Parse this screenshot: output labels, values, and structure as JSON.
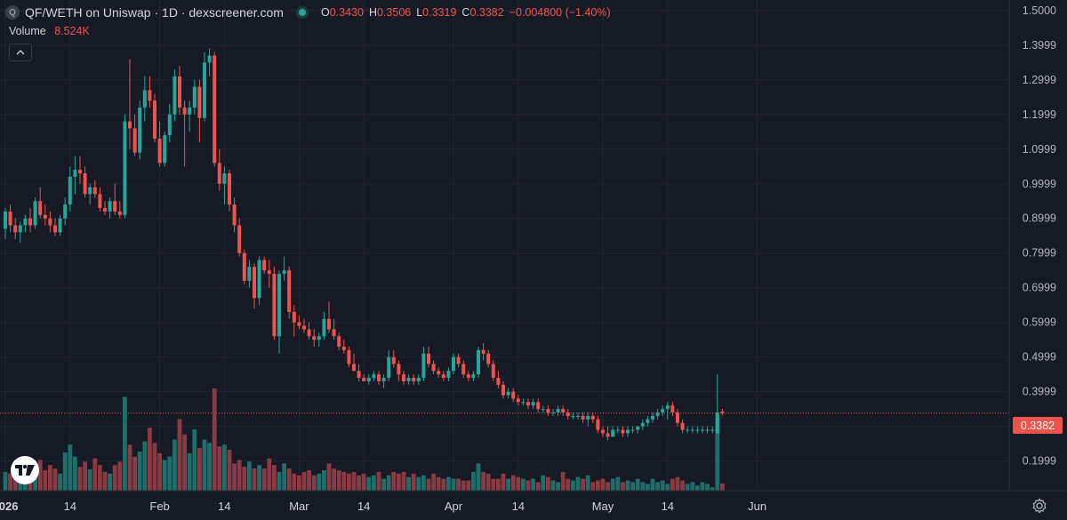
{
  "header": {
    "symbol_icon": "Q",
    "title": "QF/WETH on Uniswap · 1D · dexscreener.com",
    "status_icon": "market-status-dot-icon",
    "ohlc": {
      "open_label": "O",
      "open": "0.3430",
      "high_label": "H",
      "high": "0.3506",
      "low_label": "L",
      "low": "0.3319",
      "close_label": "C",
      "close": "0.3382",
      "change": "−0.004800 (−1.40%)"
    },
    "volume_label": "Volume",
    "volume_value": "8.524K",
    "collapse_icon": "chevron-up-icon"
  },
  "price_badge": "0.3382",
  "logo_icon": "tradingview-logo-icon",
  "settings_icon": "gear-icon",
  "colors": {
    "background": "#161a25",
    "up": "#26a69a",
    "down": "#ef5350",
    "volume_up": "#1f6e69",
    "volume_down": "#8a3a42",
    "grid": "#232632",
    "text": "#d1d4dc"
  },
  "chart_data": {
    "type": "candlestick",
    "interval": "1D",
    "y_axis": {
      "min": 0.14,
      "max": 1.52,
      "ticks": [
        "1.5000",
        "1.3999",
        "1.2999",
        "1.1999",
        "1.0999",
        "0.9999",
        "0.8999",
        "0.7999",
        "0.6999",
        "0.5999",
        "0.4999",
        "0.3999",
        "0.2999",
        "0.1999"
      ],
      "tick_values": [
        1.5,
        1.3999,
        1.2999,
        1.1999,
        1.0999,
        0.9999,
        0.8999,
        0.7999,
        0.6999,
        0.5999,
        0.4999,
        0.3999,
        0.2999,
        0.1999
      ],
      "position": "right"
    },
    "x_axis": {
      "labels": [
        {
          "text": "2026",
          "day": 14,
          "bold": true
        },
        {
          "text": "14",
          "day": 27,
          "bold": false
        },
        {
          "text": "Feb",
          "day": 45,
          "bold": false
        },
        {
          "text": "14",
          "day": 58,
          "bold": false
        },
        {
          "text": "Mar",
          "day": 73,
          "bold": false
        },
        {
          "text": "14",
          "day": 86,
          "bold": false
        },
        {
          "text": "Apr",
          "day": 104,
          "bold": false
        },
        {
          "text": "14",
          "day": 117,
          "bold": false
        },
        {
          "text": "May",
          "day": 134,
          "bold": false
        },
        {
          "text": "14",
          "day": 147,
          "bold": false
        },
        {
          "text": "Jun",
          "day": 165,
          "bold": false
        }
      ],
      "day_offset": 14
    },
    "last_price": 0.3382,
    "grid": true,
    "volume_pane": "overlay-bottom",
    "candles": [
      [
        0.87,
        0.93,
        0.84,
        0.92,
        22
      ],
      [
        0.92,
        0.94,
        0.86,
        0.88,
        20
      ],
      [
        0.88,
        0.9,
        0.84,
        0.86,
        25
      ],
      [
        0.86,
        0.89,
        0.83,
        0.88,
        18
      ],
      [
        0.88,
        0.91,
        0.86,
        0.9,
        20
      ],
      [
        0.9,
        0.93,
        0.86,
        0.88,
        28
      ],
      [
        0.88,
        0.96,
        0.87,
        0.95,
        32
      ],
      [
        0.95,
        0.99,
        0.9,
        0.91,
        36
      ],
      [
        0.91,
        0.94,
        0.88,
        0.9,
        24
      ],
      [
        0.9,
        0.92,
        0.86,
        0.88,
        30
      ],
      [
        0.88,
        0.9,
        0.85,
        0.86,
        26
      ],
      [
        0.86,
        0.91,
        0.85,
        0.9,
        20
      ],
      [
        0.9,
        0.96,
        0.88,
        0.94,
        45
      ],
      [
        0.94,
        1.05,
        0.92,
        1.02,
        54
      ],
      [
        1.02,
        1.08,
        0.97,
        1.04,
        40
      ],
      [
        1.04,
        1.08,
        1.0,
        1.03,
        28
      ],
      [
        1.03,
        1.05,
        0.96,
        0.97,
        34
      ],
      [
        0.97,
        1.0,
        0.94,
        0.99,
        25
      ],
      [
        0.99,
        1.01,
        0.96,
        0.97,
        38
      ],
      [
        0.97,
        0.99,
        0.92,
        0.93,
        30
      ],
      [
        0.93,
        0.95,
        0.91,
        0.92,
        22
      ],
      [
        0.92,
        0.96,
        0.9,
        0.95,
        20
      ],
      [
        0.95,
        1.0,
        0.91,
        0.92,
        30
      ],
      [
        0.92,
        0.95,
        0.9,
        0.91,
        34
      ],
      [
        0.91,
        1.2,
        0.9,
        1.18,
        110
      ],
      [
        1.18,
        1.36,
        1.1,
        1.16,
        54
      ],
      [
        1.16,
        1.2,
        1.08,
        1.09,
        40
      ],
      [
        1.09,
        1.24,
        1.07,
        1.22,
        46
      ],
      [
        1.22,
        1.31,
        1.18,
        1.27,
        58
      ],
      [
        1.27,
        1.31,
        1.22,
        1.24,
        74
      ],
      [
        1.24,
        1.26,
        1.12,
        1.13,
        56
      ],
      [
        1.13,
        1.18,
        1.05,
        1.06,
        44
      ],
      [
        1.06,
        1.15,
        1.05,
        1.14,
        36
      ],
      [
        1.14,
        1.23,
        1.12,
        1.2,
        40
      ],
      [
        1.2,
        1.33,
        1.18,
        1.31,
        60
      ],
      [
        1.31,
        1.34,
        1.2,
        1.22,
        84
      ],
      [
        1.22,
        1.24,
        1.05,
        1.2,
        66
      ],
      [
        1.2,
        1.24,
        1.15,
        1.22,
        44
      ],
      [
        1.22,
        1.3,
        1.2,
        1.28,
        72
      ],
      [
        1.28,
        1.3,
        1.12,
        1.19,
        50
      ],
      [
        1.19,
        1.38,
        1.18,
        1.35,
        60
      ],
      [
        1.35,
        1.39,
        1.31,
        1.37,
        56
      ],
      [
        1.37,
        1.38,
        1.05,
        1.06,
        120
      ],
      [
        1.06,
        1.1,
        0.98,
        1.0,
        52
      ],
      [
        1.0,
        1.05,
        0.94,
        1.03,
        54
      ],
      [
        1.03,
        1.04,
        0.92,
        0.94,
        48
      ],
      [
        0.94,
        0.96,
        0.86,
        0.88,
        32
      ],
      [
        0.88,
        0.9,
        0.79,
        0.8,
        36
      ],
      [
        0.8,
        0.81,
        0.71,
        0.72,
        28
      ],
      [
        0.72,
        0.78,
        0.7,
        0.76,
        34
      ],
      [
        0.76,
        0.77,
        0.64,
        0.67,
        26
      ],
      [
        0.67,
        0.79,
        0.65,
        0.78,
        30
      ],
      [
        0.78,
        0.79,
        0.74,
        0.75,
        26
      ],
      [
        0.75,
        0.78,
        0.7,
        0.74,
        38
      ],
      [
        0.74,
        0.76,
        0.55,
        0.56,
        30
      ],
      [
        0.56,
        0.75,
        0.51,
        0.74,
        22
      ],
      [
        0.74,
        0.79,
        0.72,
        0.75,
        32
      ],
      [
        0.75,
        0.76,
        0.61,
        0.63,
        26
      ],
      [
        0.63,
        0.65,
        0.56,
        0.6,
        20
      ],
      [
        0.6,
        0.62,
        0.58,
        0.59,
        18
      ],
      [
        0.59,
        0.61,
        0.57,
        0.58,
        22
      ],
      [
        0.58,
        0.6,
        0.55,
        0.56,
        24
      ],
      [
        0.56,
        0.58,
        0.53,
        0.55,
        18
      ],
      [
        0.55,
        0.57,
        0.53,
        0.56,
        20
      ],
      [
        0.56,
        0.63,
        0.55,
        0.61,
        24
      ],
      [
        0.61,
        0.66,
        0.57,
        0.58,
        32
      ],
      [
        0.58,
        0.61,
        0.55,
        0.56,
        26
      ],
      [
        0.56,
        0.57,
        0.52,
        0.53,
        24
      ],
      [
        0.53,
        0.55,
        0.51,
        0.52,
        22
      ],
      [
        0.52,
        0.53,
        0.47,
        0.48,
        20
      ],
      [
        0.48,
        0.51,
        0.46,
        0.46,
        22
      ],
      [
        0.46,
        0.48,
        0.43,
        0.44,
        18
      ],
      [
        0.44,
        0.45,
        0.43,
        0.43,
        20
      ],
      [
        0.43,
        0.45,
        0.42,
        0.44,
        16
      ],
      [
        0.44,
        0.46,
        0.43,
        0.45,
        18
      ],
      [
        0.45,
        0.46,
        0.42,
        0.43,
        22
      ],
      [
        0.43,
        0.45,
        0.41,
        0.44,
        14
      ],
      [
        0.44,
        0.52,
        0.43,
        0.5,
        18
      ],
      [
        0.5,
        0.52,
        0.47,
        0.48,
        22
      ],
      [
        0.48,
        0.49,
        0.43,
        0.45,
        20
      ],
      [
        0.45,
        0.46,
        0.42,
        0.43,
        22
      ],
      [
        0.43,
        0.45,
        0.42,
        0.44,
        16
      ],
      [
        0.44,
        0.45,
        0.42,
        0.43,
        20
      ],
      [
        0.43,
        0.45,
        0.42,
        0.44,
        16
      ],
      [
        0.44,
        0.53,
        0.43,
        0.51,
        18
      ],
      [
        0.51,
        0.53,
        0.47,
        0.48,
        14
      ],
      [
        0.48,
        0.49,
        0.45,
        0.46,
        20
      ],
      [
        0.46,
        0.47,
        0.44,
        0.45,
        16
      ],
      [
        0.45,
        0.46,
        0.43,
        0.44,
        14
      ],
      [
        0.44,
        0.47,
        0.43,
        0.46,
        16
      ],
      [
        0.46,
        0.51,
        0.45,
        0.5,
        14
      ],
      [
        0.5,
        0.51,
        0.47,
        0.48,
        14
      ],
      [
        0.48,
        0.49,
        0.44,
        0.45,
        12
      ],
      [
        0.45,
        0.46,
        0.43,
        0.44,
        12
      ],
      [
        0.44,
        0.46,
        0.43,
        0.45,
        22
      ],
      [
        0.45,
        0.53,
        0.44,
        0.52,
        32
      ],
      [
        0.52,
        0.54,
        0.49,
        0.51,
        22
      ],
      [
        0.51,
        0.52,
        0.47,
        0.48,
        20
      ],
      [
        0.48,
        0.49,
        0.43,
        0.44,
        14
      ],
      [
        0.44,
        0.46,
        0.41,
        0.42,
        14
      ],
      [
        0.42,
        0.43,
        0.38,
        0.39,
        20
      ],
      [
        0.39,
        0.41,
        0.38,
        0.4,
        14
      ],
      [
        0.4,
        0.41,
        0.37,
        0.38,
        18
      ],
      [
        0.38,
        0.39,
        0.36,
        0.37,
        16
      ],
      [
        0.37,
        0.38,
        0.36,
        0.37,
        14
      ],
      [
        0.37,
        0.38,
        0.35,
        0.36,
        12
      ],
      [
        0.36,
        0.38,
        0.35,
        0.37,
        14
      ],
      [
        0.37,
        0.38,
        0.34,
        0.35,
        10
      ],
      [
        0.35,
        0.36,
        0.34,
        0.35,
        18
      ],
      [
        0.35,
        0.36,
        0.33,
        0.34,
        16
      ],
      [
        0.34,
        0.35,
        0.33,
        0.34,
        12
      ],
      [
        0.34,
        0.36,
        0.33,
        0.35,
        10
      ],
      [
        0.35,
        0.36,
        0.33,
        0.34,
        22
      ],
      [
        0.34,
        0.35,
        0.32,
        0.33,
        14
      ],
      [
        0.33,
        0.34,
        0.32,
        0.33,
        12
      ],
      [
        0.33,
        0.34,
        0.32,
        0.33,
        16
      ],
      [
        0.33,
        0.34,
        0.31,
        0.32,
        14
      ],
      [
        0.32,
        0.34,
        0.3,
        0.33,
        18
      ],
      [
        0.33,
        0.34,
        0.31,
        0.32,
        10
      ],
      [
        0.32,
        0.33,
        0.28,
        0.29,
        12
      ],
      [
        0.29,
        0.3,
        0.27,
        0.28,
        14
      ],
      [
        0.28,
        0.3,
        0.26,
        0.27,
        10
      ],
      [
        0.27,
        0.3,
        0.27,
        0.29,
        14
      ],
      [
        0.29,
        0.3,
        0.28,
        0.29,
        16
      ],
      [
        0.29,
        0.3,
        0.27,
        0.28,
        10
      ],
      [
        0.28,
        0.3,
        0.27,
        0.29,
        12
      ],
      [
        0.29,
        0.3,
        0.28,
        0.29,
        10
      ],
      [
        0.29,
        0.3,
        0.28,
        0.3,
        14
      ],
      [
        0.3,
        0.32,
        0.29,
        0.31,
        10
      ],
      [
        0.31,
        0.33,
        0.3,
        0.32,
        8
      ],
      [
        0.32,
        0.34,
        0.31,
        0.33,
        14
      ],
      [
        0.33,
        0.35,
        0.32,
        0.34,
        10
      ],
      [
        0.34,
        0.36,
        0.33,
        0.35,
        12
      ],
      [
        0.35,
        0.37,
        0.32,
        0.36,
        8
      ],
      [
        0.36,
        0.37,
        0.33,
        0.34,
        14
      ],
      [
        0.34,
        0.35,
        0.3,
        0.31,
        16
      ],
      [
        0.31,
        0.32,
        0.28,
        0.29,
        12
      ],
      [
        0.29,
        0.3,
        0.28,
        0.29,
        8
      ],
      [
        0.29,
        0.3,
        0.28,
        0.29,
        10
      ],
      [
        0.29,
        0.3,
        0.28,
        0.29,
        6
      ],
      [
        0.29,
        0.3,
        0.28,
        0.29,
        10
      ],
      [
        0.29,
        0.3,
        0.28,
        0.29,
        8
      ],
      [
        0.29,
        0.3,
        0.28,
        0.29,
        4
      ],
      [
        0.28,
        0.45,
        0.28,
        0.34,
        86
      ],
      [
        0.343,
        0.3506,
        0.3319,
        0.3382,
        8.524
      ]
    ]
  }
}
